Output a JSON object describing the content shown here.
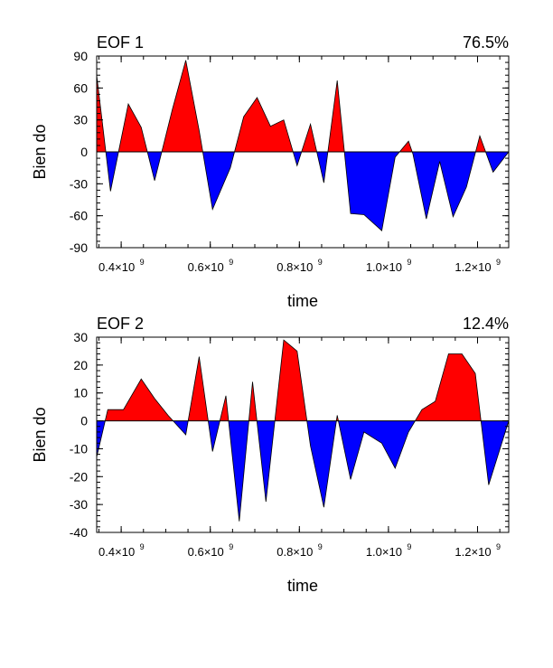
{
  "colors": {
    "positive": "#ff0000",
    "negative": "#0000ff",
    "axis": "#000000"
  },
  "chart_data": [
    {
      "type": "area",
      "title_left": "EOF 1",
      "title_right": "76.5%",
      "xlabel": "time",
      "ylabel": "Bien do",
      "xlim": [
        0.345,
        1.27
      ],
      "ylim": [
        -90,
        90
      ],
      "yticks": [
        90,
        60,
        30,
        0,
        -30,
        -60,
        -90
      ],
      "xticks": [
        {
          "value": 0.4,
          "label": "0.4×10",
          "exp": "9"
        },
        {
          "value": 0.6,
          "label": "0.6×10",
          "exp": "9"
        },
        {
          "value": 0.8,
          "label": "0.8×10",
          "exp": "9"
        },
        {
          "value": 1.0,
          "label": "1.0×10",
          "exp": "9"
        },
        {
          "value": 1.2,
          "label": "1.2×10",
          "exp": "9"
        }
      ],
      "x_unit": "1e9",
      "x": [
        0.345,
        0.376,
        0.416,
        0.445,
        0.475,
        0.515,
        0.545,
        0.575,
        0.605,
        0.645,
        0.675,
        0.705,
        0.735,
        0.765,
        0.795,
        0.825,
        0.855,
        0.885,
        0.915,
        0.945,
        0.985,
        1.015,
        1.045,
        1.055,
        1.085,
        1.115,
        1.145,
        1.175,
        1.205,
        1.235,
        1.27
      ],
      "values": [
        72,
        -37,
        45,
        23,
        -27,
        40,
        86,
        20,
        -54,
        -15,
        33,
        51,
        24,
        30,
        -13,
        26,
        -29,
        67,
        -58,
        -59,
        -74,
        -5,
        10,
        -2,
        -63,
        -9,
        -61,
        -33,
        15,
        -19,
        0
      ]
    },
    {
      "type": "area",
      "title_left": "EOF 2",
      "title_right": "12.4%",
      "xlabel": "time",
      "ylabel": "Bien do",
      "xlim": [
        0.345,
        1.27
      ],
      "ylim": [
        -40,
        30
      ],
      "yticks": [
        30,
        20,
        10,
        0,
        -10,
        -20,
        -30,
        -40
      ],
      "xticks": [
        {
          "value": 0.4,
          "label": "0.4×10",
          "exp": "9"
        },
        {
          "value": 0.6,
          "label": "0.6×10",
          "exp": "9"
        },
        {
          "value": 0.8,
          "label": "0.8×10",
          "exp": "9"
        },
        {
          "value": 1.0,
          "label": "1.0×10",
          "exp": "9"
        },
        {
          "value": 1.2,
          "label": "1.2×10",
          "exp": "9"
        }
      ],
      "x_unit": "1e9",
      "x": [
        0.345,
        0.37,
        0.405,
        0.445,
        0.475,
        0.505,
        0.545,
        0.575,
        0.605,
        0.635,
        0.665,
        0.695,
        0.725,
        0.765,
        0.795,
        0.825,
        0.855,
        0.885,
        0.915,
        0.945,
        0.985,
        1.015,
        1.045,
        1.075,
        1.105,
        1.135,
        1.165,
        1.195,
        1.225,
        1.27
      ],
      "values": [
        -13,
        4,
        4,
        15,
        8,
        2,
        -5,
        23,
        -11,
        9,
        -36,
        14,
        -29,
        29,
        25,
        -9,
        -31,
        2,
        -21,
        -4,
        -8,
        -17,
        -4,
        4,
        7,
        24,
        24,
        17,
        -23,
        0
      ]
    }
  ]
}
